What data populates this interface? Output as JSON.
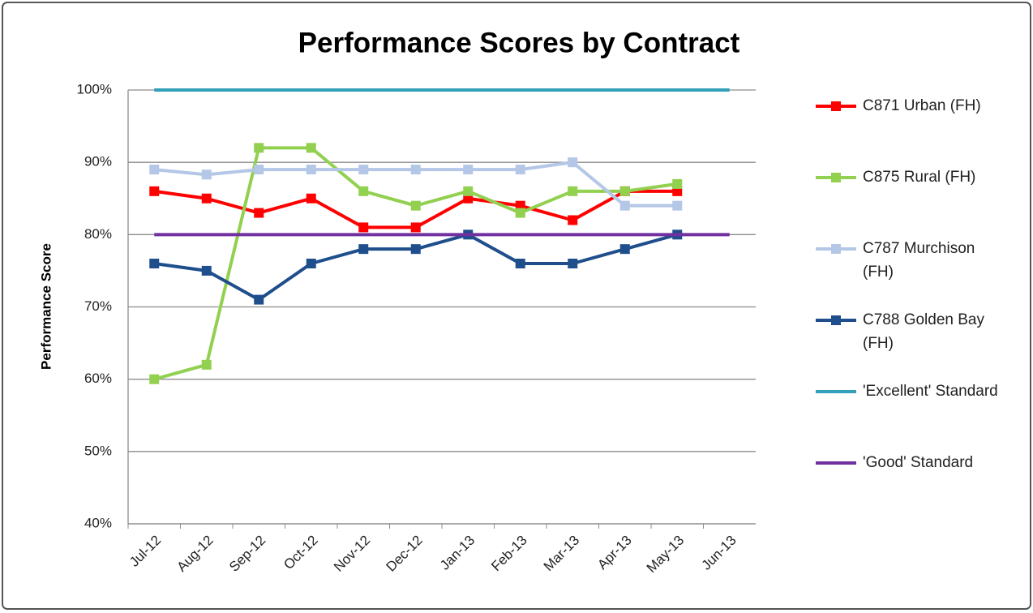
{
  "chart_data": {
    "type": "line",
    "title": "Performance Scores by Contract",
    "y_label": "Performance Score",
    "categories": [
      "Jul-12",
      "Aug-12",
      "Sep-12",
      "Oct-12",
      "Nov-12",
      "Dec-12",
      "Jan-13",
      "Feb-13",
      "Mar-13",
      "Apr-13",
      "May-13",
      "Jun-13"
    ],
    "series": [
      {
        "name": "C871 Urban (FH)",
        "color": "#ff0000",
        "marker": "square",
        "values": [
          86,
          85,
          83,
          85,
          81,
          81,
          85,
          84,
          82,
          86,
          86,
          null
        ]
      },
      {
        "name": "C875 Rural (FH)",
        "color": "#92d050",
        "marker": "square",
        "values": [
          60,
          62,
          92,
          92,
          86,
          84,
          86,
          83,
          86,
          86,
          87,
          null
        ]
      },
      {
        "name": "C787 Murchison (FH)",
        "color": "#b4c7e7",
        "marker": "square",
        "values": [
          89,
          88.3,
          89,
          89,
          89,
          89,
          89,
          89,
          90,
          84,
          84,
          null
        ]
      },
      {
        "name": "C788 Golden Bay (FH)",
        "color": "#1f4e8c",
        "marker": "square",
        "values": [
          76,
          75,
          71,
          76,
          78,
          78,
          80,
          76,
          76,
          78,
          80,
          null
        ]
      },
      {
        "name": "'Excellent' Standard",
        "color": "#31a0b8",
        "marker": "none",
        "values": [
          100,
          100,
          100,
          100,
          100,
          100,
          100,
          100,
          100,
          100,
          100,
          100
        ]
      },
      {
        "name": "'Good' Standard",
        "color": "#7030a0",
        "marker": "none",
        "values": [
          80,
          80,
          80,
          80,
          80,
          80,
          80,
          80,
          80,
          80,
          80,
          80
        ]
      }
    ],
    "ylim": [
      40,
      100
    ],
    "yticks": [
      {
        "value": 40,
        "label": "40%"
      },
      {
        "value": 50,
        "label": "50%"
      },
      {
        "value": 60,
        "label": "60%"
      },
      {
        "value": 70,
        "label": "70%"
      },
      {
        "value": 80,
        "label": "80%"
      },
      {
        "value": 90,
        "label": "90%"
      },
      {
        "value": 100,
        "label": "100%"
      }
    ],
    "grid": true,
    "legend": "right"
  }
}
